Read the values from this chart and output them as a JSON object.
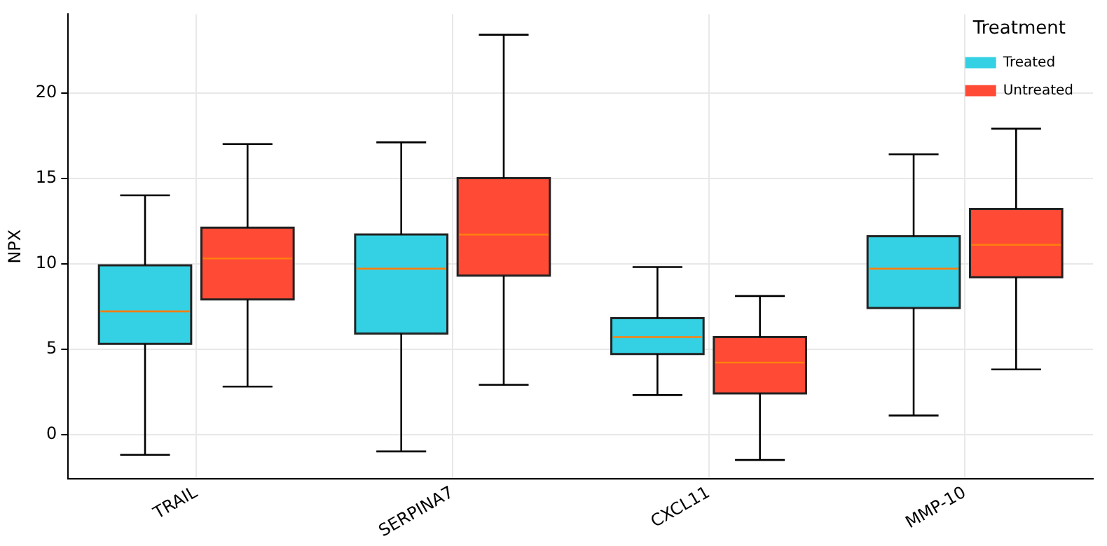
{
  "chart_data": {
    "type": "box",
    "ylabel": "NPX",
    "legend_title": "Treatment",
    "legend": "top right",
    "grid": true,
    "categories": [
      "TRAIL",
      "SERPINA7",
      "CXCL11",
      "MMP-10"
    ],
    "ylim": [
      -2.6,
      24.6
    ],
    "yticks": [
      0,
      5,
      10,
      15,
      20
    ],
    "series": [
      {
        "name": "Treated",
        "color": "#33d1e3",
        "boxes": [
          {
            "low": -1.2,
            "q1": 5.3,
            "median": 7.2,
            "q3": 9.9,
            "high": 14.0
          },
          {
            "low": -1.0,
            "q1": 5.9,
            "median": 9.7,
            "q3": 11.7,
            "high": 17.1
          },
          {
            "low": 2.3,
            "q1": 4.7,
            "median": 5.7,
            "q3": 6.8,
            "high": 9.8
          },
          {
            "low": 1.1,
            "q1": 7.4,
            "median": 9.7,
            "q3": 11.6,
            "high": 16.4
          }
        ]
      },
      {
        "name": "Untreated",
        "color": "#ff4a36",
        "boxes": [
          {
            "low": 2.8,
            "q1": 7.9,
            "median": 10.3,
            "q3": 12.1,
            "high": 17.0
          },
          {
            "low": 2.9,
            "q1": 9.3,
            "median": 11.7,
            "q3": 15.0,
            "high": 23.4
          },
          {
            "low": -1.5,
            "q1": 2.4,
            "median": 4.2,
            "q3": 5.7,
            "high": 8.1
          },
          {
            "low": 3.8,
            "q1": 9.2,
            "median": 11.1,
            "q3": 13.2,
            "high": 17.9
          }
        ]
      }
    ]
  }
}
